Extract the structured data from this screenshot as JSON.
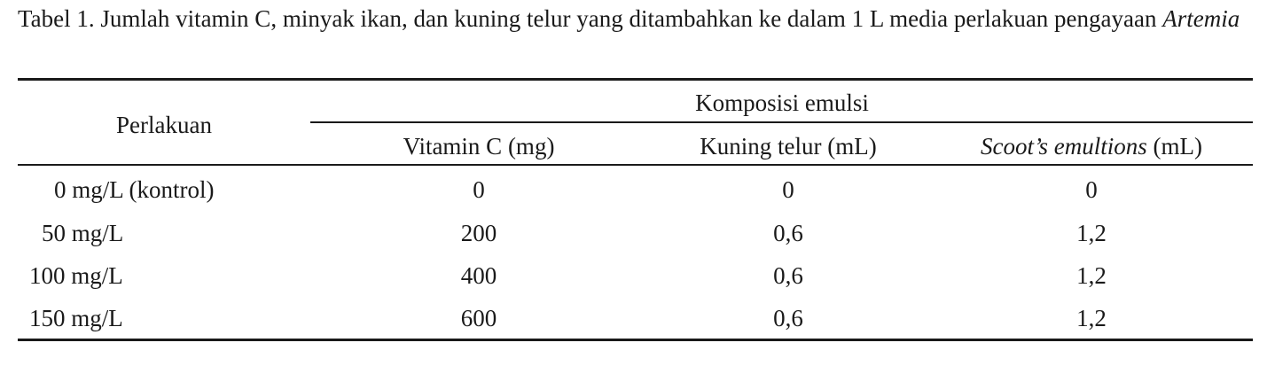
{
  "caption": {
    "text": "Tabel 1. Jumlah vitamin C, minyak ikan, dan kuning telur yang ditambahkan ke dalam 1 L media perlakuan pengayaan",
    "italic": "Artemia"
  },
  "table": {
    "row_header": "Perlakuan",
    "group_header": "Komposisi emulsi",
    "columns": [
      {
        "label": "Vitamin C (mg)"
      },
      {
        "label": "Kuning telur (mL)"
      },
      {
        "label_italic": "Scoot’s emultions",
        "label_rest": " (mL)"
      }
    ],
    "rows": [
      {
        "treatment": "0 mg/L (kontrol)",
        "values": [
          "0",
          "0",
          "0"
        ]
      },
      {
        "treatment": "50 mg/L",
        "values": [
          "200",
          "0,6",
          "1,2"
        ]
      },
      {
        "treatment": "100 mg/L",
        "values": [
          "400",
          "0,6",
          "1,2"
        ]
      },
      {
        "treatment": "150 mg/L",
        "values": [
          "600",
          "0,6",
          "1,2"
        ]
      }
    ]
  }
}
